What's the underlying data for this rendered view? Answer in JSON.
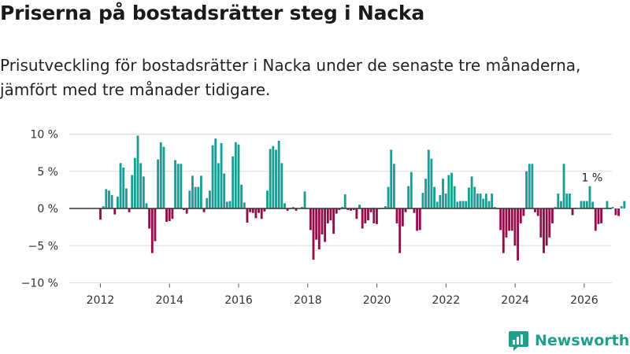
{
  "header": {
    "title": "Priserna på bostadsrätter steg i Nacka",
    "subtitle_line1": "Prisutveckling för bostadsrätter i Nacka under de senaste tre månaderna,",
    "subtitle_line2": "jämfört med tre månader tidigare."
  },
  "brand": {
    "name": "Newsworthy"
  },
  "colors": {
    "positive": "#1a9e94",
    "negative": "#950c4b",
    "grid": "#dddddd",
    "zero": "#333333"
  },
  "chart_data": {
    "type": "bar",
    "title": "Priserna på bostadsrätter steg i Nacka",
    "xlabel": "",
    "ylabel": "",
    "x_unit": "year (monthly bars)",
    "ylim": [
      -10,
      10
    ],
    "yticks": [
      10,
      5,
      0,
      -5,
      -10
    ],
    "ytick_labels": [
      "10 %",
      "5 %",
      "0 %",
      "−5 %",
      "−10 %"
    ],
    "xlim": [
      2011.1,
      2026.8
    ],
    "xticks": [
      2012,
      2014,
      2016,
      2018,
      2020,
      2022,
      2024,
      2026
    ],
    "xtick_labels": [
      "2012",
      "2014",
      "2016",
      "2018",
      "2020",
      "2022",
      "2024",
      "2026"
    ],
    "annotation": {
      "x": 2026.0,
      "value": 1,
      "text": "1 %"
    },
    "series": [
      {
        "name": "Prisutveckling",
        "start": 2012.0,
        "step": 0.0833,
        "values": [
          -1.5,
          0.3,
          2.6,
          2.4,
          1.8,
          -0.8,
          1.6,
          6.1,
          5.5,
          2.7,
          -0.5,
          4.5,
          6.8,
          9.8,
          6.1,
          4.3,
          0.7,
          -2.7,
          -6.0,
          -4.4,
          6.6,
          8.9,
          8.3,
          -1.8,
          -1.7,
          -1.4,
          6.5,
          6.0,
          6.0,
          -0.2,
          -0.7,
          2.4,
          4.4,
          2.9,
          2.9,
          4.4,
          -0.5,
          1.4,
          2.4,
          8.5,
          9.4,
          6.1,
          8.8,
          4.7,
          0.9,
          1.0,
          7.0,
          8.9,
          8.6,
          3.2,
          0.8,
          -1.9,
          -0.5,
          -0.6,
          -1.3,
          -0.6,
          -1.4,
          -0.4,
          2.4,
          8.0,
          8.4,
          7.9,
          9.1,
          6.1,
          0.7,
          -0.3,
          0.1,
          0.2,
          -0.3,
          0.0,
          0.2,
          2.3,
          0.0,
          -2.9,
          -6.9,
          -4.2,
          -5.5,
          -3.5,
          -4.5,
          -2.0,
          -1.6,
          -3.4,
          -0.7,
          -0.2,
          0.2,
          1.9,
          -0.2,
          -0.3,
          -0.2,
          -1.4,
          0.5,
          -2.7,
          -2.0,
          -1.6,
          -0.5,
          -2.0,
          -2.1,
          -0.1,
          0.1,
          0.3,
          2.9,
          7.9,
          6.0,
          -2.0,
          -6.0,
          -2.4,
          -0.5,
          3.0,
          4.9,
          -0.6,
          -3.0,
          -2.9,
          2.1,
          4.0,
          7.9,
          6.7,
          2.9,
          0.9,
          1.8,
          4.0,
          2.0,
          4.5,
          4.8,
          3.0,
          0.9,
          1.0,
          1.0,
          1.0,
          2.8,
          4.3,
          2.9,
          2.0,
          2.0,
          1.3,
          2.0,
          1.0,
          2.0,
          0.2,
          -0.1,
          -2.9,
          -6.0,
          -3.9,
          -3.0,
          -3.0,
          -5.0,
          -7.0,
          -2.0,
          -1.0,
          5.0,
          6.0,
          6.0,
          -0.5,
          -1.0,
          -3.9,
          -6.0,
          -5.0,
          -3.9,
          -2.0,
          0.2,
          2.0,
          1.0,
          6.0,
          2.0,
          2.0,
          -0.9,
          0.1,
          0.0,
          1.0,
          1.0,
          1.0,
          3.0,
          0.9,
          -3.0,
          -2.1,
          -2.0,
          0.0,
          1.0,
          0.1,
          0.2,
          -0.9,
          -1.0,
          0.3,
          1.0
        ]
      }
    ]
  }
}
